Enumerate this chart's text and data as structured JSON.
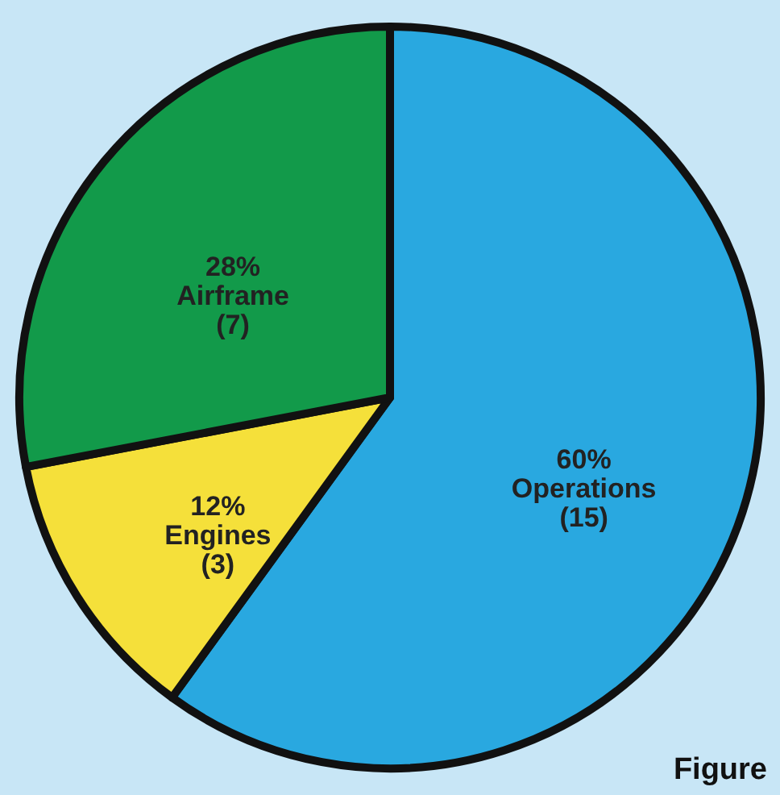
{
  "chart_data": {
    "type": "pie",
    "categories": [
      "Operations",
      "Engines",
      "Airframe"
    ],
    "values": [
      60,
      12,
      28
    ],
    "value_labels": [
      "60%",
      "12%",
      "28%"
    ],
    "colors": [
      "#29a8e0",
      "#f5e03a",
      "#129a4a"
    ],
    "annotations": [
      {
        "text": "(15)",
        "x": "Operations"
      },
      {
        "text": "(3)",
        "x": "Engines"
      },
      {
        "text": "(7)",
        "x": "Airframe"
      },
      "Figure"
    ]
  }
}
